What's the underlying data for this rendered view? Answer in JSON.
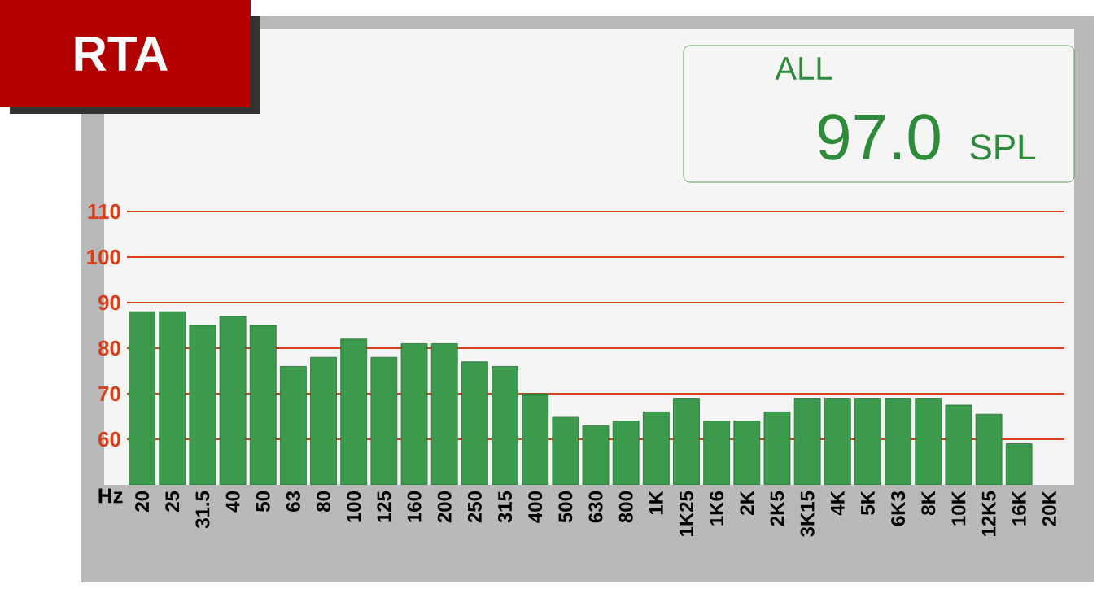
{
  "chart_data": {
    "type": "bar",
    "title": "RTA",
    "xlabel": "Hz",
    "categories": [
      "20",
      "25",
      "31.5",
      "40",
      "50",
      "63",
      "80",
      "100",
      "125",
      "160",
      "200",
      "250",
      "315",
      "400",
      "500",
      "630",
      "800",
      "1K",
      "1K25",
      "1K6",
      "2K",
      "2K5",
      "3K15",
      "4K",
      "5K",
      "6K3",
      "8K",
      "10K",
      "12K5",
      "16K",
      "20K"
    ],
    "values": [
      88,
      88,
      85,
      87,
      85,
      76,
      78,
      82,
      78,
      81,
      81,
      77,
      76,
      70,
      65,
      63,
      64,
      66,
      69,
      64,
      64,
      66,
      69,
      69,
      69,
      69,
      69,
      67.5,
      65.5,
      59,
      null
    ],
    "color": "#3c9a4c",
    "ylim": [
      50,
      110
    ],
    "yticks": [
      60,
      70,
      80,
      90,
      100,
      110
    ],
    "grid": "y",
    "annotations": [
      "ALL",
      "97.0",
      "SPL"
    ]
  }
}
